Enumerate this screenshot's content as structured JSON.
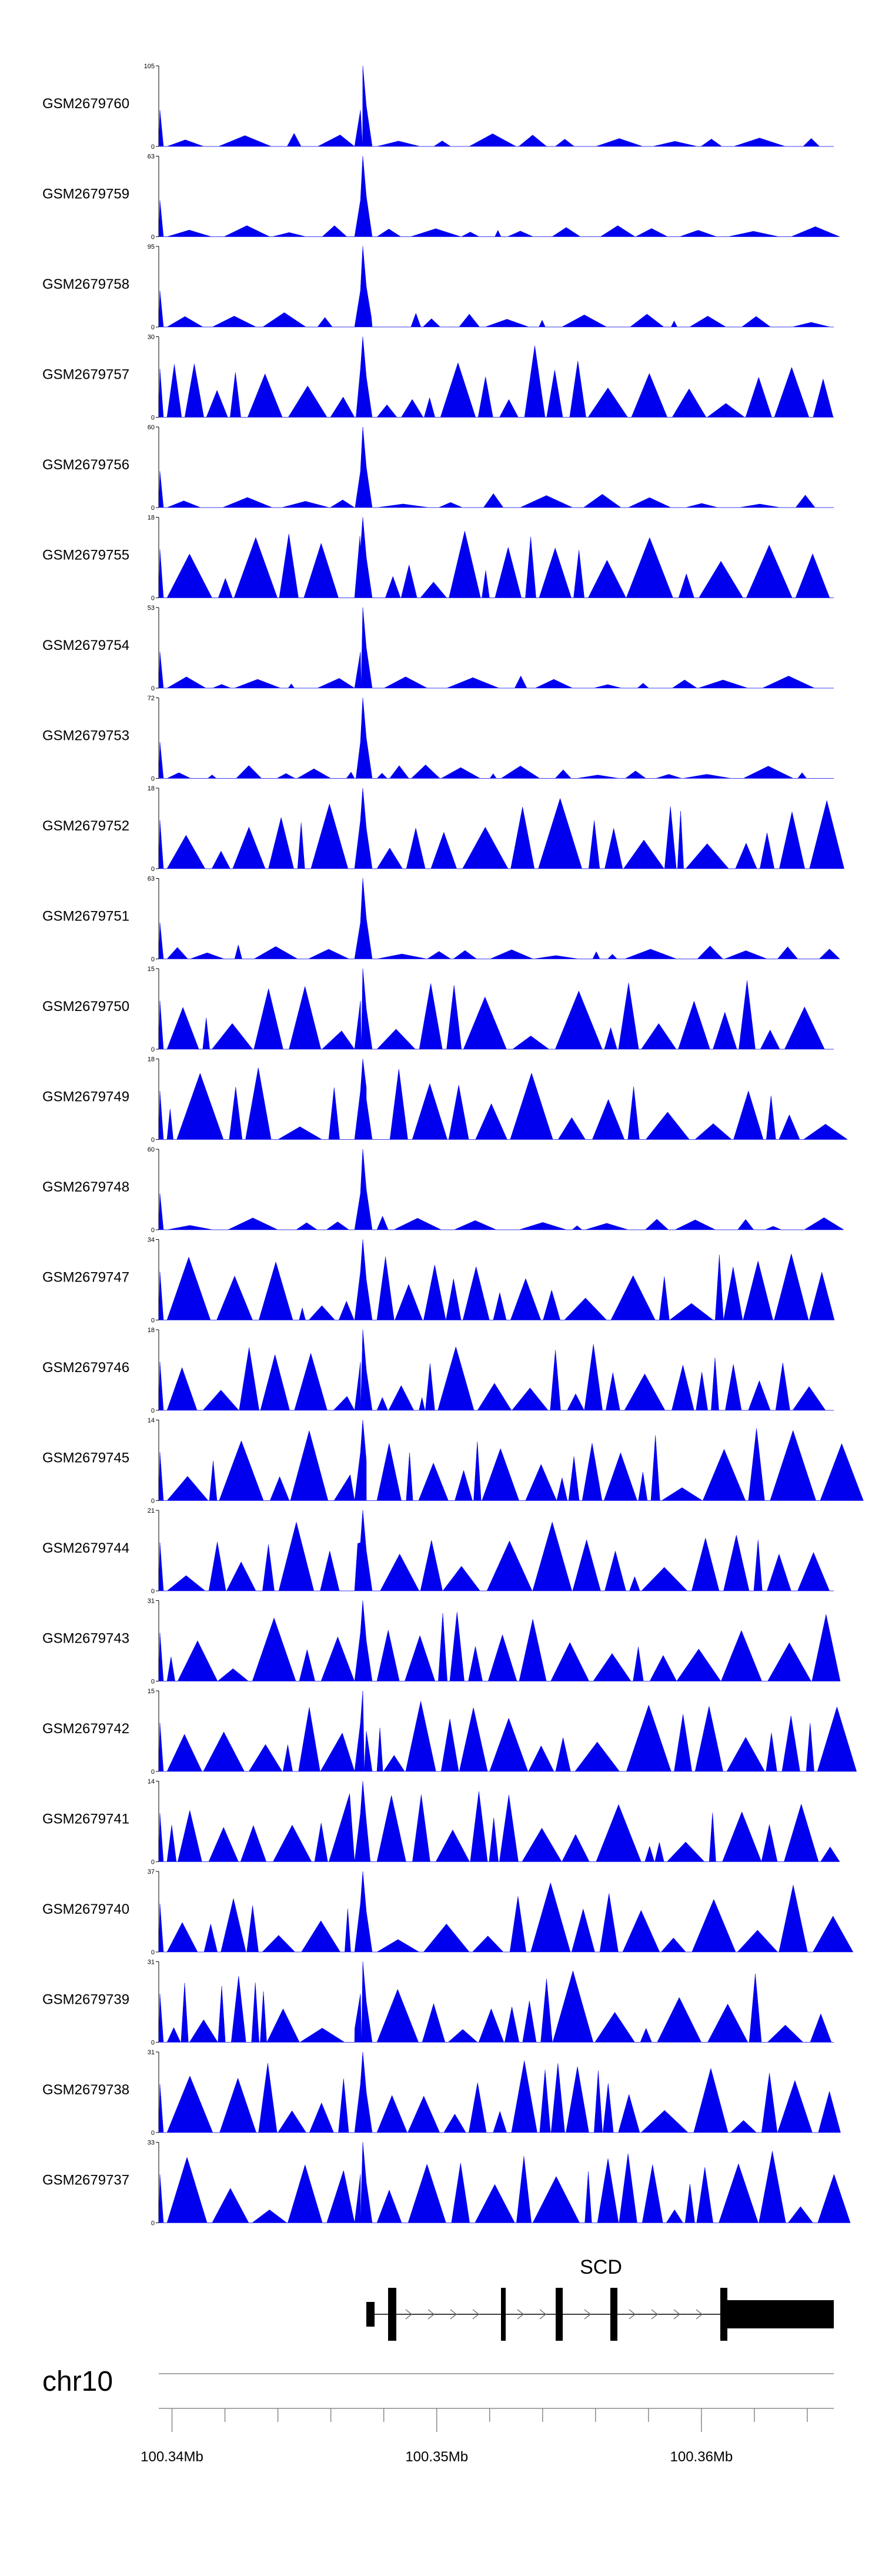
{
  "chart_data": {
    "type": "area",
    "title": "",
    "chromosome": "chr10",
    "gene": {
      "name": "SCD"
    },
    "x_axis": {
      "unit": "Mb",
      "range": [
        100.3395,
        100.365
      ],
      "tick_labels": [
        "100.34Mb",
        "100.35Mb",
        "100.36Mb"
      ],
      "tick_label_values": [
        100.34,
        100.35,
        100.36
      ]
    },
    "tracks": [
      {
        "name": "GSM2679760",
        "ymax": 105
      },
      {
        "name": "GSM2679759",
        "ymax": 63
      },
      {
        "name": "GSM2679758",
        "ymax": 95
      },
      {
        "name": "GSM2679757",
        "ymax": 30
      },
      {
        "name": "GSM2679756",
        "ymax": 60
      },
      {
        "name": "GSM2679755",
        "ymax": 18
      },
      {
        "name": "GSM2679754",
        "ymax": 53
      },
      {
        "name": "GSM2679753",
        "ymax": 72
      },
      {
        "name": "GSM2679752",
        "ymax": 18
      },
      {
        "name": "GSM2679751",
        "ymax": 63
      },
      {
        "name": "GSM2679750",
        "ymax": 15
      },
      {
        "name": "GSM2679749",
        "ymax": 18
      },
      {
        "name": "GSM2679748",
        "ymax": 60
      },
      {
        "name": "GSM2679747",
        "ymax": 34
      },
      {
        "name": "GSM2679746",
        "ymax": 18
      },
      {
        "name": "GSM2679745",
        "ymax": 14
      },
      {
        "name": "GSM2679744",
        "ymax": 21
      },
      {
        "name": "GSM2679743",
        "ymax": 31
      },
      {
        "name": "GSM2679742",
        "ymax": 15
      },
      {
        "name": "GSM2679741",
        "ymax": 14
      },
      {
        "name": "GSM2679740",
        "ymax": 37
      },
      {
        "name": "GSM2679739",
        "ymax": 31
      },
      {
        "name": "GSM2679738",
        "ymax": 31
      },
      {
        "name": "GSM2679737",
        "ymax": 33
      }
    ],
    "colors": {
      "signal": "#0000ee",
      "axis": "#000000",
      "gene": "#000000"
    }
  }
}
